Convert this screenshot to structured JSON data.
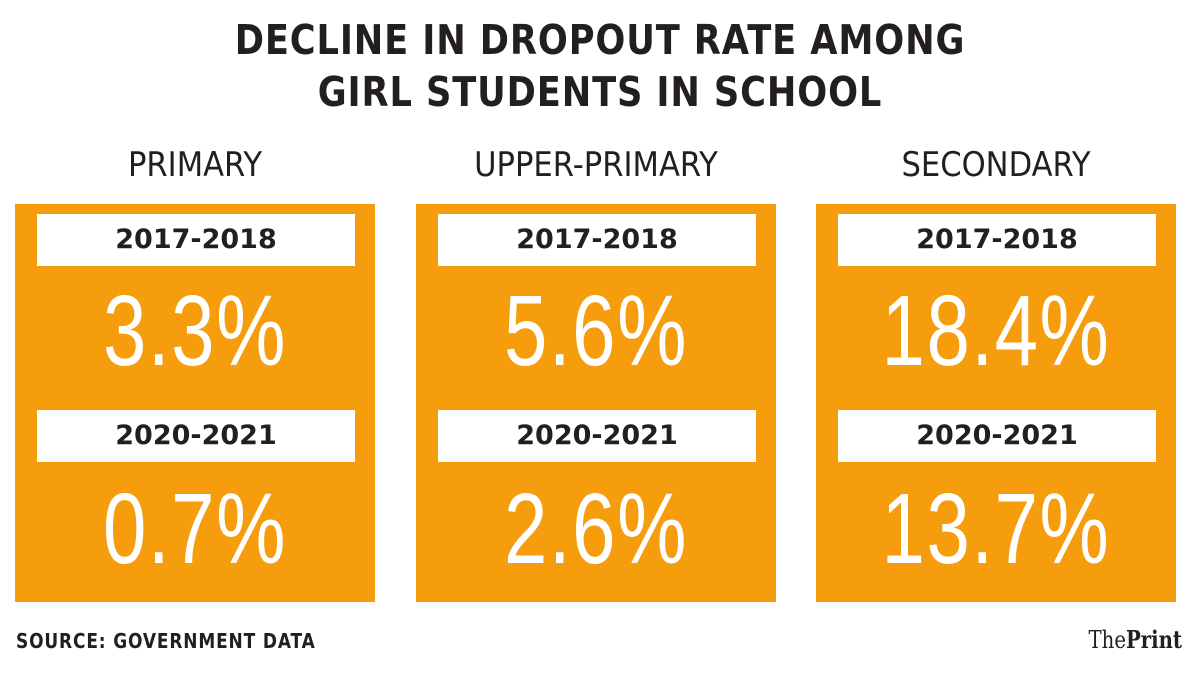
{
  "chart_data": {
    "type": "table",
    "title": [
      "DECLINE IN DROPOUT RATE AMONG",
      "GIRL STUDENTS IN SCHOOL"
    ],
    "series": [
      {
        "name": "2017-2018",
        "values": [
          3.3,
          5.6,
          18.4
        ]
      },
      {
        "name": "2020-2021",
        "values": [
          0.7,
          2.6,
          13.7
        ]
      }
    ],
    "categories": [
      "PRIMARY",
      "UPPER-PRIMARY",
      "SECONDARY"
    ],
    "unit": "%",
    "panels": [
      {
        "heading": "PRIMARY",
        "year_1": "2017-2018",
        "value_1": "3.3%",
        "year_2": "2020-2021",
        "value_2": "0.7%"
      },
      {
        "heading": "UPPER-PRIMARY",
        "year_1": "2017-2018",
        "value_1": "5.6%",
        "year_2": "2020-2021",
        "value_2": "2.6%"
      },
      {
        "heading": "SECONDARY",
        "year_1": "2017-2018",
        "value_1": "18.4%",
        "year_2": "2020-2021",
        "value_2": "13.7%"
      }
    ],
    "source": "SOURCE: GOVERNMENT DATA"
  },
  "logo": {
    "the": "The",
    "print": "Print"
  },
  "colors": {
    "panel": "#f59d0d",
    "text": "#231f20",
    "value": "#ffffff"
  }
}
